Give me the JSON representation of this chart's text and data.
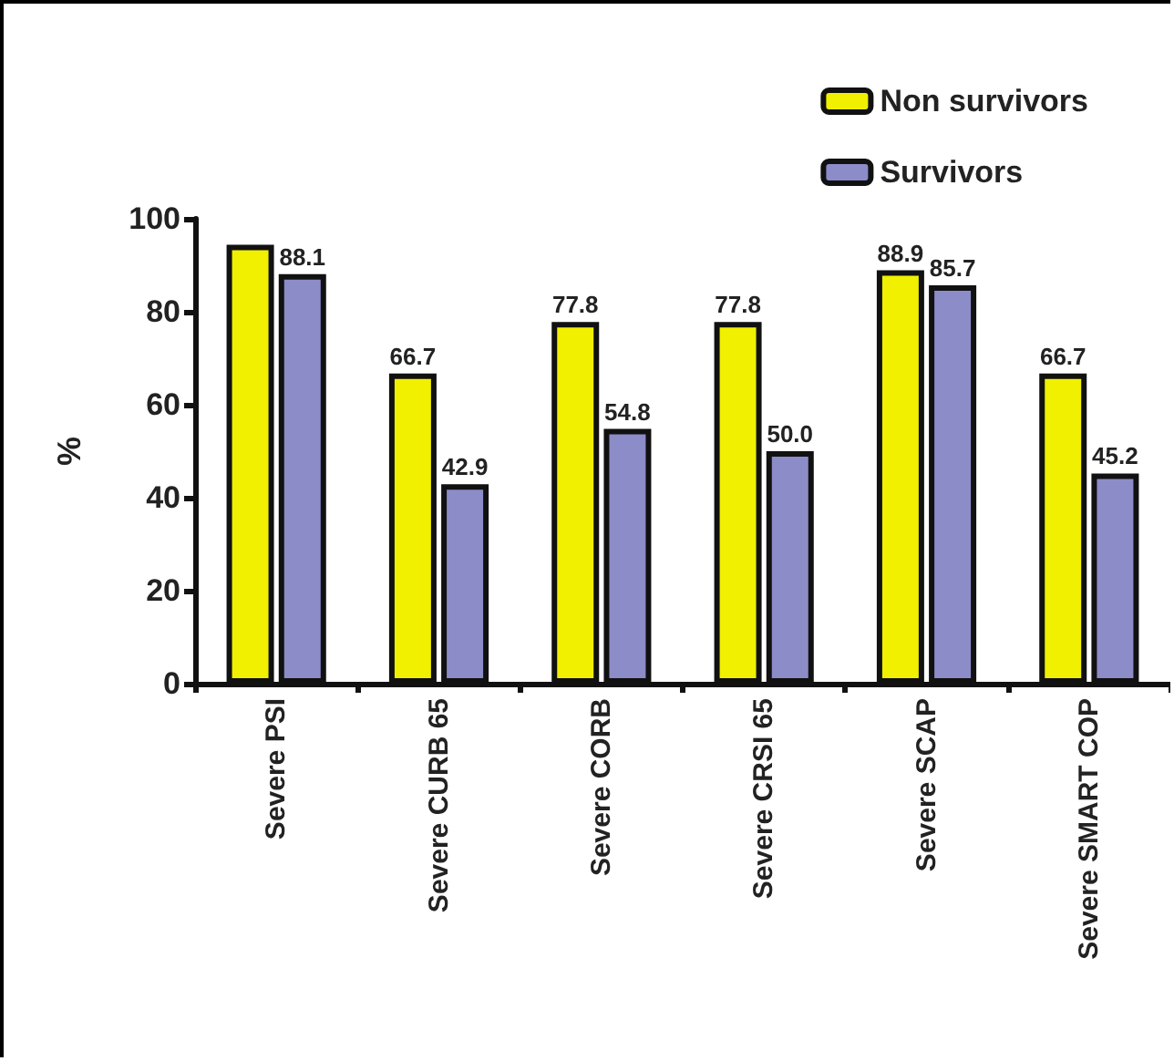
{
  "chart_data": {
    "type": "bar",
    "ylabel": "%",
    "categories": [
      "Severe PSI",
      "Severe CURB 65",
      "Severe CORB",
      "Severe CRSI 65",
      "Severe SCAP",
      "Severe SMART COP"
    ],
    "series": [
      {
        "name": "Non survivors",
        "color": "#f0f000",
        "values": [
          94.4,
          66.7,
          77.8,
          77.8,
          88.9,
          66.7
        ],
        "value_labels": [
          null,
          "66.7",
          "77.8",
          "77.8",
          "88.9",
          "66.7"
        ]
      },
      {
        "name": "Survivors",
        "color": "#8c8cc8",
        "values": [
          88.1,
          42.9,
          54.8,
          50.0,
          85.7,
          45.2
        ],
        "value_labels": [
          "88.1",
          "42.9",
          "54.8",
          "50.0",
          "85.7",
          "45.2"
        ]
      }
    ],
    "ylim": [
      0,
      100
    ],
    "yticks": [
      0,
      20,
      40,
      60,
      80,
      100
    ],
    "grid": false,
    "legend": "top right"
  }
}
